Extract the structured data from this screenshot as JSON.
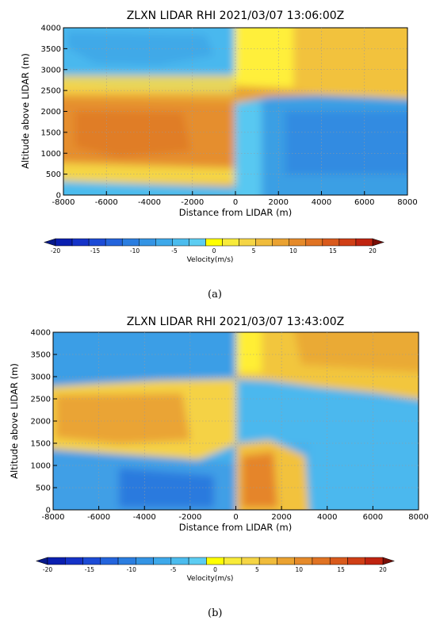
{
  "colorbar": {
    "colors": [
      "#0a1fb0",
      "#1533c8",
      "#1c4bd6",
      "#2464dc",
      "#2b7ee0",
      "#3494e4",
      "#3ea9ea",
      "#4bbcee",
      "#5ccdf2",
      "#ffff00",
      "#f8eb3a",
      "#f5d545",
      "#f0bc3c",
      "#eaa231",
      "#e58a2a",
      "#e07323",
      "#d95a1c",
      "#d03f16",
      "#c02410"
    ],
    "low_color": "#081a8c",
    "high_color": "#7a0f08",
    "tick_labels": [
      "-20",
      "-15",
      "-10",
      "-5",
      "0",
      "5",
      "10",
      "15",
      "20"
    ],
    "label": "Velocity(m/s)"
  },
  "chart_data": [
    {
      "type": "heatmap",
      "title": "ZLXN LIDAR RHI 2021/03/07 13:06:00Z",
      "xlabel": "Distance from LIDAR (m)",
      "ylabel": "Altitude above LIDAR (m)",
      "xlim": [
        -8000,
        8000
      ],
      "ylim": [
        0,
        4000
      ],
      "x_ticks": [
        "-8000",
        "-6000",
        "-4000",
        "-2000",
        "0",
        "2000",
        "4000",
        "6000",
        "8000"
      ],
      "y_ticks": [
        "0",
        "500",
        "1000",
        "1500",
        "2000",
        "2500",
        "3000",
        "3500",
        "4000"
      ],
      "grid": true,
      "colorbar_range": [
        -20,
        20
      ],
      "regions": [
        {
          "x": [
            -8000,
            0
          ],
          "y": [
            0,
            500
          ],
          "velocity": -5
        },
        {
          "x": [
            -8000,
            0
          ],
          "y": [
            500,
            2600
          ],
          "velocity": 3
        },
        {
          "x": [
            -8000,
            0
          ],
          "y": [
            2600,
            4000
          ],
          "velocity": -5
        },
        {
          "x": [
            0,
            8000
          ],
          "y": [
            0,
            2300
          ],
          "velocity": -5
        },
        {
          "x": [
            0,
            8000
          ],
          "y": [
            2300,
            4000
          ],
          "velocity": 2
        }
      ],
      "caption": "(a)"
    },
    {
      "type": "heatmap",
      "title": "ZLXN LIDAR RHI 2021/03/07 13:43:00Z",
      "xlabel": "Distance from LIDAR (m)",
      "ylabel": "Altitude above LIDAR (m)",
      "xlim": [
        -8000,
        8000
      ],
      "ylim": [
        0,
        4000
      ],
      "x_ticks": [
        "-8000",
        "-6000",
        "-4000",
        "-2000",
        "0",
        "2000",
        "4000",
        "6000",
        "8000"
      ],
      "y_ticks": [
        "0",
        "500",
        "1000",
        "1500",
        "2000",
        "2500",
        "3000",
        "3500",
        "4000"
      ],
      "grid": true,
      "colorbar_range": [
        -20,
        20
      ],
      "regions": [
        {
          "x": [
            -8000,
            0
          ],
          "y": [
            0,
            1400
          ],
          "velocity": -6
        },
        {
          "x": [
            -8000,
            0
          ],
          "y": [
            1400,
            2800
          ],
          "velocity": 3
        },
        {
          "x": [
            -8000,
            0
          ],
          "y": [
            2800,
            4000
          ],
          "velocity": -5
        },
        {
          "x": [
            0,
            3000
          ],
          "y": [
            0,
            1500
          ],
          "velocity": 3
        },
        {
          "x": [
            0,
            8000
          ],
          "y": [
            1500,
            2900
          ],
          "velocity": -5
        },
        {
          "x": [
            0,
            8000
          ],
          "y": [
            2900,
            4000
          ],
          "velocity": 3
        }
      ],
      "caption": "(b)"
    }
  ]
}
